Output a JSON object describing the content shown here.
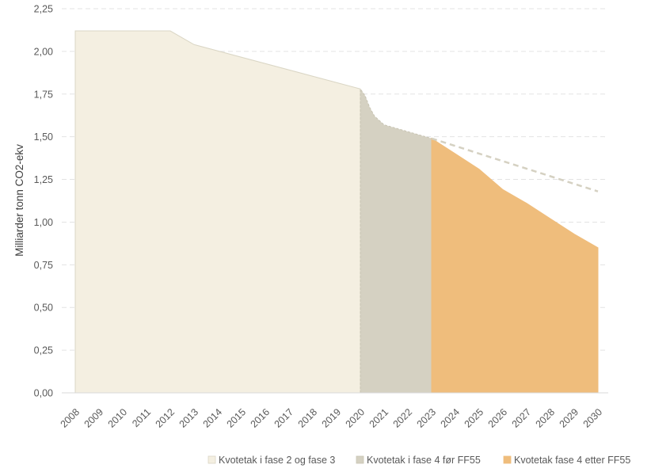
{
  "chart_data": {
    "type": "area",
    "title": "",
    "xlabel": "",
    "ylabel": "Milliarder tonn CO2-ekv",
    "ylim": [
      0,
      2.25
    ],
    "xlim": [
      2008,
      2030
    ],
    "y_ticks": [
      "0,00",
      "0,25",
      "0,50",
      "0,75",
      "1,00",
      "1,25",
      "1,50",
      "1,75",
      "2,00",
      "2,25"
    ],
    "x_ticks": [
      "2008",
      "2009",
      "2010",
      "2011",
      "2012",
      "2013",
      "2014",
      "2015",
      "2016",
      "2017",
      "2018",
      "2019",
      "2020",
      "2021",
      "2022",
      "2023",
      "2024",
      "2025",
      "2026",
      "2027",
      "2028",
      "2029",
      "2030"
    ],
    "grid": "horizontal dashed",
    "legend_position": "bottom",
    "series": [
      {
        "name": "Kvotetak i fase 2 og fase 3",
        "color": "#F4EFE1",
        "edge": "#DAD6C5",
        "points": [
          [
            2008,
            2.12
          ],
          [
            2012,
            2.12
          ],
          [
            2013,
            2.04
          ],
          [
            2020,
            1.78
          ]
        ]
      },
      {
        "name": "Kvotetak i fase 4 før FF55",
        "color": "#D5D1C2",
        "edge": "#C8C4B3",
        "points": [
          [
            2020,
            1.78
          ],
          [
            2020.2,
            1.74
          ],
          [
            2020.4,
            1.67
          ],
          [
            2020.6,
            1.62
          ],
          [
            2021,
            1.57
          ],
          [
            2022,
            1.53
          ],
          [
            2023,
            1.49
          ]
        ]
      },
      {
        "name": "Kvotetak fase 4 etter FF55",
        "color": "#EFBD7C",
        "edge": "#EFBD7C",
        "points": [
          [
            2023,
            1.49
          ],
          [
            2024,
            1.4
          ],
          [
            2025,
            1.31
          ],
          [
            2026,
            1.19
          ],
          [
            2027,
            1.11
          ],
          [
            2028,
            1.02
          ],
          [
            2029,
            0.93
          ],
          [
            2030,
            0.85
          ]
        ]
      }
    ],
    "projection_line": {
      "style": "dashed",
      "color": "#D5D1C2",
      "points": [
        [
          2023,
          1.49
        ],
        [
          2030,
          1.18
        ]
      ]
    }
  }
}
